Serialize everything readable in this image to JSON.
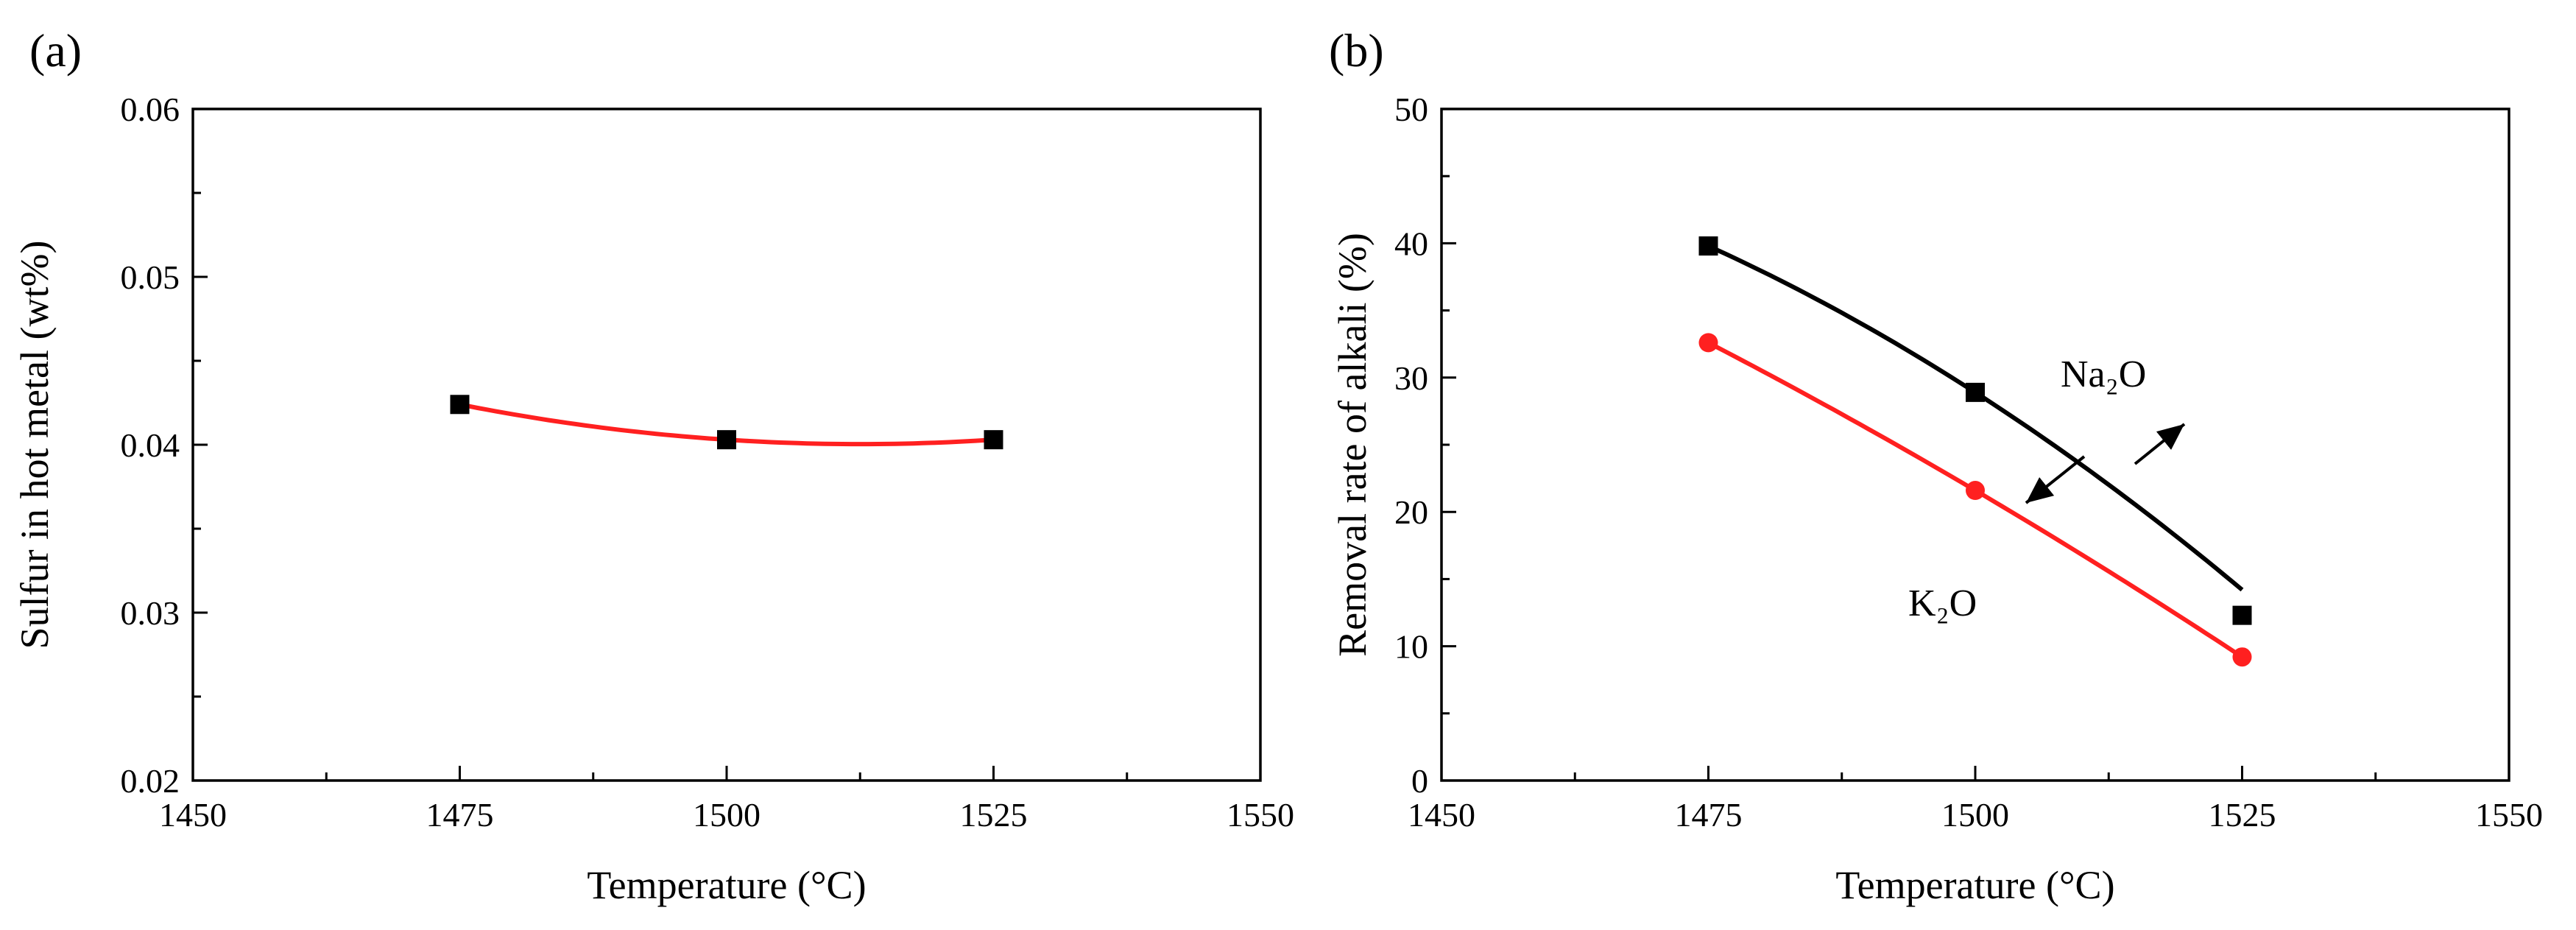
{
  "figure": {
    "colors": {
      "axis": "#000000",
      "black_series": "#000000",
      "red_series": "#ff2020"
    }
  },
  "chart_data": [
    {
      "panel": "(a)",
      "type": "line",
      "title": "",
      "xlabel": "Temperature (°C)",
      "ylabel": "Sulfur in hot metal (wt%)",
      "xlim": [
        1450,
        1550
      ],
      "ylim": [
        0.02,
        0.06
      ],
      "x_ticks": [
        "1450",
        "1475",
        "1500",
        "1525",
        "1550"
      ],
      "y_ticks": [
        "0.02",
        "0.03",
        "0.04",
        "0.05",
        "0.06"
      ],
      "x_ticks_values": [
        1450,
        1475,
        1500,
        1525,
        1550
      ],
      "y_ticks_values": [
        0.02,
        0.03,
        0.04,
        0.05,
        0.06
      ],
      "grid": false,
      "series": [
        {
          "name": "Sulfur",
          "marker": "square",
          "marker_color": "#000000",
          "line_color": "#ff2020",
          "x": [
            1475,
            1500,
            1525
          ],
          "values": [
            0.0424,
            0.0403,
            0.0403
          ]
        }
      ]
    },
    {
      "panel": "(b)",
      "type": "line",
      "title": "",
      "xlabel": "Temperature (°C)",
      "ylabel": "Removal rate of alkali (%)",
      "xlim": [
        1450,
        1550
      ],
      "ylim": [
        0,
        50
      ],
      "x_ticks": [
        "1450",
        "1475",
        "1500",
        "1525",
        "1550"
      ],
      "y_ticks": [
        "0",
        "10",
        "20",
        "30",
        "40",
        "50"
      ],
      "x_ticks_values": [
        1450,
        1475,
        1500,
        1525,
        1550
      ],
      "y_ticks_values": [
        0,
        10,
        20,
        30,
        40,
        50
      ],
      "grid": false,
      "series": [
        {
          "name": "Na₂O",
          "marker": "square",
          "color": "#000000",
          "x": [
            1475,
            1500,
            1525
          ],
          "values": [
            39.8,
            28.9,
            12.3
          ],
          "fit_end": 14.2
        },
        {
          "name": "K₂O",
          "marker": "circle",
          "color": "#ff2020",
          "x": [
            1475,
            1500,
            1525
          ],
          "values": [
            32.6,
            21.6,
            9.2
          ],
          "fit_end": 9.2
        }
      ]
    }
  ]
}
